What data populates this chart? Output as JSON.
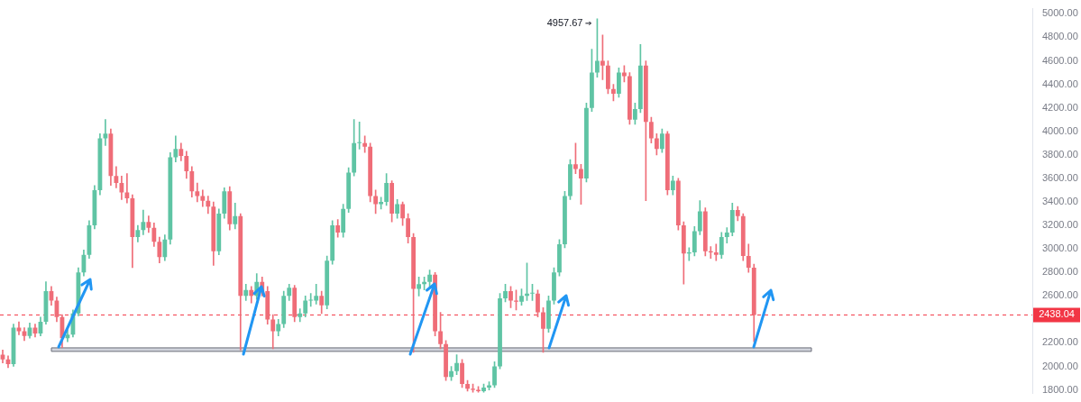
{
  "chart_data": {
    "type": "candlestick",
    "categories": [
      null,
      null,
      null,
      null,
      null,
      null,
      null,
      null,
      null,
      null,
      null,
      null,
      null,
      null,
      null,
      null,
      null,
      null,
      null,
      null,
      null,
      null,
      null,
      null,
      null,
      null,
      null,
      null,
      null,
      null,
      null,
      null,
      null,
      null,
      null,
      null,
      null,
      null,
      null,
      null,
      null,
      null,
      null,
      null,
      null,
      null,
      null,
      null,
      null,
      null,
      null,
      null,
      null,
      null,
      null,
      null,
      null,
      null,
      null,
      null,
      null,
      null,
      null,
      null,
      null,
      null,
      null,
      null,
      null,
      null,
      null,
      null,
      null,
      null,
      null,
      null,
      null,
      null,
      null,
      null,
      null,
      null,
      null,
      null,
      null,
      null,
      null,
      null,
      null,
      null,
      null,
      null,
      null,
      null,
      null,
      null,
      null,
      null,
      null,
      null,
      null,
      null,
      null,
      null,
      null,
      null,
      null,
      null,
      null,
      null,
      null,
      null,
      null,
      null,
      null,
      null,
      null,
      null,
      null,
      null,
      null,
      null,
      null,
      null,
      null,
      null,
      null,
      null,
      null,
      null,
      null,
      null,
      null,
      null,
      null,
      null,
      null,
      null,
      null,
      null,
      null,
      null,
      null,
      null,
      null,
      null,
      null,
      null,
      null,
      null,
      null,
      null,
      null,
      null,
      null,
      null,
      null,
      null,
      null,
      null,
      null,
      null,
      null,
      null,
      null,
      null,
      null,
      null,
      null,
      null,
      null,
      null,
      null,
      null,
      null,
      null,
      null,
      null,
      null,
      null,
      null,
      null,
      null,
      null,
      null,
      null,
      null,
      null,
      null,
      null,
      null
    ],
    "ohlc": [
      [
        2100,
        2140,
        2030,
        2060
      ],
      [
        2060,
        2090,
        1990,
        2020
      ],
      [
        2020,
        2360,
        2000,
        2330
      ],
      [
        2330,
        2380,
        2270,
        2300
      ],
      [
        2300,
        2330,
        2220,
        2260
      ],
      [
        2260,
        2370,
        2240,
        2330
      ],
      [
        2330,
        2360,
        2250,
        2280
      ],
      [
        2280,
        2420,
        2260,
        2380
      ],
      [
        2380,
        2720,
        2360,
        2640
      ],
      [
        2640,
        2680,
        2520,
        2560
      ],
      [
        2560,
        2590,
        2380,
        2420
      ],
      [
        2420,
        2440,
        2160,
        2240
      ],
      [
        2240,
        2310,
        2210,
        2270
      ],
      [
        2270,
        2480,
        2250,
        2450
      ],
      [
        2450,
        2840,
        2430,
        2800
      ],
      [
        2800,
        2990,
        2770,
        2950
      ],
      [
        2950,
        3240,
        2920,
        3200
      ],
      [
        3200,
        3540,
        3170,
        3500
      ],
      [
        3500,
        3980,
        3460,
        3940
      ],
      [
        3940,
        4100,
        3880,
        3980
      ],
      [
        3980,
        4020,
        3540,
        3620
      ],
      [
        3620,
        3700,
        3520,
        3560
      ],
      [
        3560,
        3620,
        3420,
        3480
      ],
      [
        3480,
        3640,
        3390,
        3430
      ],
      [
        3430,
        3460,
        2840,
        3100
      ],
      [
        3100,
        3200,
        3060,
        3160
      ],
      [
        3160,
        3330,
        3120,
        3230
      ],
      [
        3230,
        3280,
        3140,
        3180
      ],
      [
        3180,
        3220,
        3020,
        3060
      ],
      [
        3060,
        3100,
        2880,
        2930
      ],
      [
        2930,
        3120,
        2900,
        3080
      ],
      [
        3080,
        3820,
        3040,
        3780
      ],
      [
        3780,
        3960,
        3740,
        3850
      ],
      [
        3850,
        3900,
        3750,
        3790
      ],
      [
        3790,
        3830,
        3600,
        3660
      ],
      [
        3660,
        3700,
        3440,
        3490
      ],
      [
        3490,
        3560,
        3400,
        3450
      ],
      [
        3450,
        3500,
        3360,
        3410
      ],
      [
        3410,
        3450,
        3300,
        3360
      ],
      [
        3360,
        3400,
        2860,
        2980
      ],
      [
        2980,
        3340,
        2950,
        3300
      ],
      [
        3300,
        3520,
        3260,
        3490
      ],
      [
        3490,
        3530,
        3160,
        3210
      ],
      [
        3210,
        3390,
        3170,
        3280
      ],
      [
        3280,
        3300,
        2140,
        2600
      ],
      [
        2600,
        2700,
        2560,
        2650
      ],
      [
        2650,
        2680,
        2540,
        2600
      ],
      [
        2600,
        2790,
        2570,
        2720
      ],
      [
        2720,
        2760,
        2600,
        2640
      ],
      [
        2640,
        2680,
        2360,
        2400
      ],
      [
        2400,
        2440,
        2150,
        2300
      ],
      [
        2300,
        2400,
        2260,
        2360
      ],
      [
        2360,
        2640,
        2330,
        2600
      ],
      [
        2600,
        2700,
        2560,
        2670
      ],
      [
        2670,
        2690,
        2380,
        2420
      ],
      [
        2420,
        2490,
        2380,
        2450
      ],
      [
        2450,
        2600,
        2420,
        2560
      ],
      [
        2560,
        2620,
        2510,
        2560
      ],
      [
        2560,
        2700,
        2530,
        2600
      ],
      [
        2600,
        2640,
        2450,
        2520
      ],
      [
        2520,
        2940,
        2490,
        2900
      ],
      [
        2900,
        3240,
        2870,
        3200
      ],
      [
        3200,
        3250,
        3100,
        3140
      ],
      [
        3140,
        3380,
        3100,
        3340
      ],
      [
        3340,
        3690,
        3310,
        3650
      ],
      [
        3650,
        4100,
        3620,
        3900
      ],
      [
        3900,
        4080,
        3850,
        3900
      ],
      [
        3900,
        3960,
        3820,
        3870
      ],
      [
        3870,
        3900,
        3400,
        3450
      ],
      [
        3450,
        3500,
        3300,
        3380
      ],
      [
        3380,
        3440,
        3340,
        3400
      ],
      [
        3400,
        3640,
        3370,
        3560
      ],
      [
        3560,
        3580,
        3230,
        3300
      ],
      [
        3300,
        3420,
        3260,
        3380
      ],
      [
        3380,
        3400,
        3200,
        3260
      ],
      [
        3260,
        3300,
        3050,
        3100
      ],
      [
        3100,
        3130,
        2120,
        2660
      ],
      [
        2660,
        2760,
        2600,
        2700
      ],
      [
        2700,
        2760,
        2650,
        2720
      ],
      [
        2720,
        2820,
        2680,
        2780
      ],
      [
        2780,
        2800,
        2260,
        2300
      ],
      [
        2300,
        2460,
        2150,
        2190
      ],
      [
        2190,
        2220,
        1880,
        1910
      ],
      [
        1910,
        2000,
        1880,
        1960
      ],
      [
        1960,
        2100,
        1930,
        2030
      ],
      [
        2030,
        2060,
        1820,
        1850
      ],
      [
        1850,
        1880,
        1790,
        1810
      ],
      [
        1810,
        1850,
        1780,
        1800
      ],
      [
        1800,
        1830,
        1780,
        1790
      ],
      [
        1790,
        1850,
        1780,
        1820
      ],
      [
        1820,
        1870,
        1800,
        1840
      ],
      [
        1840,
        2040,
        1820,
        2000
      ],
      [
        2000,
        2620,
        1980,
        2580
      ],
      [
        2580,
        2700,
        2550,
        2640
      ],
      [
        2640,
        2680,
        2500,
        2560
      ],
      [
        2560,
        2650,
        2480,
        2550
      ],
      [
        2550,
        2660,
        2520,
        2600
      ],
      [
        2600,
        2880,
        2560,
        2620
      ],
      [
        2620,
        2700,
        2560,
        2620
      ],
      [
        2620,
        2650,
        2420,
        2460
      ],
      [
        2460,
        2500,
        2120,
        2320
      ],
      [
        2320,
        2600,
        2290,
        2560
      ],
      [
        2560,
        2840,
        2530,
        2800
      ],
      [
        2800,
        3080,
        2770,
        3040
      ],
      [
        3040,
        3490,
        3010,
        3450
      ],
      [
        3450,
        3760,
        3420,
        3720
      ],
      [
        3720,
        3900,
        3640,
        3680
      ],
      [
        3680,
        3720,
        3380,
        3600
      ],
      [
        3600,
        4240,
        3570,
        4200
      ],
      [
        4200,
        4700,
        4170,
        4500
      ],
      [
        4500,
        4957.67,
        4460,
        4600
      ],
      [
        4600,
        4820,
        4440,
        4560
      ],
      [
        4560,
        4600,
        4320,
        4360
      ],
      [
        4360,
        4400,
        4260,
        4320
      ],
      [
        4320,
        4540,
        4290,
        4500
      ],
      [
        4500,
        4560,
        4420,
        4470
      ],
      [
        4470,
        4500,
        4060,
        4100
      ],
      [
        4100,
        4240,
        4060,
        4190
      ],
      [
        4190,
        4740,
        4160,
        4560
      ],
      [
        4560,
        4600,
        3410,
        4080
      ],
      [
        4080,
        4120,
        3900,
        3940
      ],
      [
        3940,
        3980,
        3800,
        3850
      ],
      [
        3850,
        4020,
        3820,
        3980
      ],
      [
        3980,
        4000,
        3460,
        3500
      ],
      [
        3500,
        3620,
        3460,
        3580
      ],
      [
        3580,
        3600,
        3160,
        3200
      ],
      [
        3200,
        3230,
        2700,
        2960
      ],
      [
        2960,
        3010,
        2900,
        2970
      ],
      [
        2970,
        3190,
        2940,
        3150
      ],
      [
        3150,
        3410,
        3120,
        3320
      ],
      [
        3320,
        3350,
        2940,
        2980
      ],
      [
        2980,
        3020,
        2920,
        2970
      ],
      [
        2970,
        3040,
        2900,
        2950
      ],
      [
        2950,
        3140,
        2920,
        3100
      ],
      [
        3100,
        3180,
        3050,
        3140
      ],
      [
        3140,
        3390,
        3110,
        3330
      ],
      [
        3330,
        3360,
        3240,
        3280
      ],
      [
        3280,
        3300,
        2900,
        2940
      ],
      [
        2940,
        3040,
        2800,
        2840
      ],
      [
        2840,
        2870,
        2210,
        2438.04
      ],
      null,
      null,
      null,
      null,
      null,
      null,
      null,
      null,
      null,
      null,
      null,
      null,
      null,
      null,
      null,
      null,
      null,
      null,
      null,
      null,
      null,
      null,
      null,
      null,
      null,
      null,
      null,
      null,
      null,
      null,
      null,
      null,
      null,
      null,
      null,
      null,
      null,
      null,
      null,
      null,
      null,
      null,
      null,
      null,
      null,
      null,
      null,
      null,
      null,
      null,
      null
    ],
    "ylim": [
      1771,
      5044
    ],
    "yticks": [
      {
        "value": 1800,
        "label": "1800.00"
      },
      {
        "value": 2000,
        "label": "2000.00"
      },
      {
        "value": 2200,
        "label": "2200.00"
      },
      {
        "value": 2600,
        "label": "2600.00"
      },
      {
        "value": 2800,
        "label": "2800.00"
      },
      {
        "value": 3000,
        "label": "3000.00"
      },
      {
        "value": 3200,
        "label": "3200.00"
      },
      {
        "value": 3400,
        "label": "3400.00"
      },
      {
        "value": 3600,
        "label": "3600.00"
      },
      {
        "value": 3800,
        "label": "3800.00"
      },
      {
        "value": 4000,
        "label": "4000.00"
      },
      {
        "value": 4200,
        "label": "4200.00"
      },
      {
        "value": 4400,
        "label": "4400.00"
      },
      {
        "value": 4600,
        "label": "4600.00"
      },
      {
        "value": 4800,
        "label": "4800.00"
      },
      {
        "value": 5000,
        "label": "5000.00"
      }
    ],
    "tick_labels": "y",
    "ref_lines": [
      {
        "axis": "y",
        "value": 2438.04,
        "label": "2438.04",
        "color": "#f23645",
        "line_style": "dashed"
      }
    ],
    "bands": [
      {
        "axis": "y",
        "from": 2128,
        "to": 2158,
        "color": "#d1d4dc"
      }
    ],
    "annotations": [
      "4957.67"
    ]
  }
}
